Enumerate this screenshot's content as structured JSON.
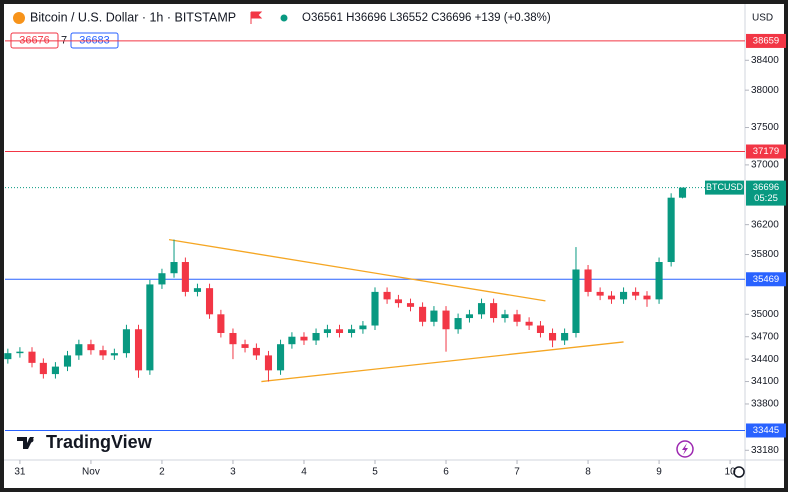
{
  "chart_data": {
    "type": "candlestick",
    "title": "Bitcoin / U.S. Dollar · 1h · BITSTAMP",
    "ohlc_text": "O36561 H36696 L36552 C36696 +139 (+0.38%)",
    "bid": "36676",
    "spread": "7",
    "ask": "36683",
    "currency": "USD",
    "brand": "TradingView",
    "symbol": "BTCUSD",
    "last_price": 36696,
    "countdown": "05:25",
    "up_color": "#089981",
    "down_color": "#f23645",
    "x": [
      -0.17,
      0,
      0.17,
      0.33,
      0.5,
      0.67,
      0.83,
      1,
      1.17,
      1.33,
      1.5,
      1.67,
      1.83,
      2,
      2.17,
      2.33,
      2.5,
      2.67,
      2.83,
      3,
      3.17,
      3.33,
      3.5,
      3.67,
      3.83,
      4,
      4.17,
      4.33,
      4.5,
      4.67,
      4.83,
      5,
      5.17,
      5.33,
      5.5,
      5.67,
      5.83,
      6,
      6.17,
      6.33,
      6.5,
      6.67,
      6.83,
      7,
      7.17,
      7.33,
      7.5,
      7.67,
      7.83,
      8,
      8.17,
      8.33,
      8.5,
      8.67,
      8.83,
      9,
      9.17,
      9.33
    ],
    "open": [
      34400,
      34480,
      34500,
      34350,
      34200,
      34300,
      34450,
      34600,
      34520,
      34450,
      34480,
      34800,
      34250,
      35400,
      35550,
      35700,
      35300,
      35350,
      35000,
      34750,
      34600,
      34550,
      34450,
      34250,
      34600,
      34700,
      34650,
      34750,
      34800,
      34750,
      34800,
      34850,
      35300,
      35200,
      35150,
      35100,
      34900,
      35050,
      34800,
      34950,
      35000,
      35150,
      34950,
      35000,
      34900,
      34850,
      34750,
      34650,
      34750,
      35600,
      35300,
      35250,
      35200,
      35300,
      35250,
      35200,
      35700,
      36561
    ],
    "high": [
      34540,
      34560,
      34560,
      34410,
      34360,
      34510,
      34660,
      34660,
      34580,
      34540,
      34860,
      34860,
      35460,
      35610,
      36000,
      35760,
      35410,
      35410,
      35060,
      34810,
      34660,
      34610,
      34510,
      34660,
      34760,
      34760,
      34810,
      34860,
      34860,
      34860,
      34910,
      35360,
      35360,
      35260,
      35210,
      35160,
      35110,
      35110,
      35010,
      35060,
      35210,
      35210,
      35060,
      35060,
      34960,
      34910,
      34810,
      34810,
      35900,
      35660,
      35360,
      35310,
      35360,
      35360,
      35310,
      35760,
      36620,
      36696
    ],
    "low": [
      34340,
      34420,
      34290,
      34140,
      34140,
      34240,
      34390,
      34460,
      34390,
      34390,
      34420,
      34150,
      34190,
      35340,
      35490,
      35240,
      35240,
      34940,
      34690,
      34400,
      34490,
      34390,
      34100,
      34190,
      34540,
      34590,
      34590,
      34690,
      34690,
      34690,
      34740,
      34790,
      35140,
      35090,
      35040,
      34840,
      34840,
      34500,
      34740,
      34890,
      34940,
      34890,
      34890,
      34840,
      34790,
      34690,
      34560,
      34590,
      34690,
      35240,
      35190,
      35140,
      35140,
      35190,
      35100,
      35140,
      35640,
      36552
    ],
    "close": [
      34480,
      34500,
      34350,
      34200,
      34300,
      34450,
      34600,
      34520,
      34450,
      34480,
      34800,
      34250,
      35400,
      35550,
      35700,
      35300,
      35350,
      35000,
      34750,
      34600,
      34550,
      34450,
      34250,
      34600,
      34700,
      34650,
      34750,
      34800,
      34750,
      34800,
      34850,
      35300,
      35200,
      35150,
      35100,
      34900,
      35050,
      34800,
      34950,
      35000,
      35150,
      34950,
      35000,
      34900,
      34850,
      34750,
      34650,
      34750,
      35600,
      35300,
      35250,
      35200,
      35300,
      35250,
      35200,
      35700,
      36561,
      36696
    ],
    "levels": [
      {
        "value": 38659,
        "color": "#f23645"
      },
      {
        "value": 37179,
        "color": "#f23645"
      },
      {
        "value": 35469,
        "color": "#2962ff"
      },
      {
        "value": 33445,
        "color": "#2962ff"
      }
    ],
    "trendlines": [
      {
        "x": [
          2.1,
          7.4
        ],
        "y": [
          36000,
          35180
        ],
        "color": "#f5a623"
      },
      {
        "x": [
          3.4,
          8.5
        ],
        "y": [
          34100,
          34630
        ],
        "color": "#f5a623"
      }
    ],
    "xlim": [
      -0.21,
      10.21
    ],
    "xticks": [
      {
        "value": 0,
        "label": "31"
      },
      {
        "value": 1,
        "label": "Nov"
      },
      2,
      3,
      4,
      5,
      6,
      7,
      8,
      9,
      10
    ],
    "ylim": [
      33050,
      39140
    ],
    "yticks": [
      33180,
      33800,
      34100,
      34400,
      34700,
      35000,
      35800,
      36200,
      37000,
      37500,
      38000,
      38400
    ],
    "grid": false
  }
}
